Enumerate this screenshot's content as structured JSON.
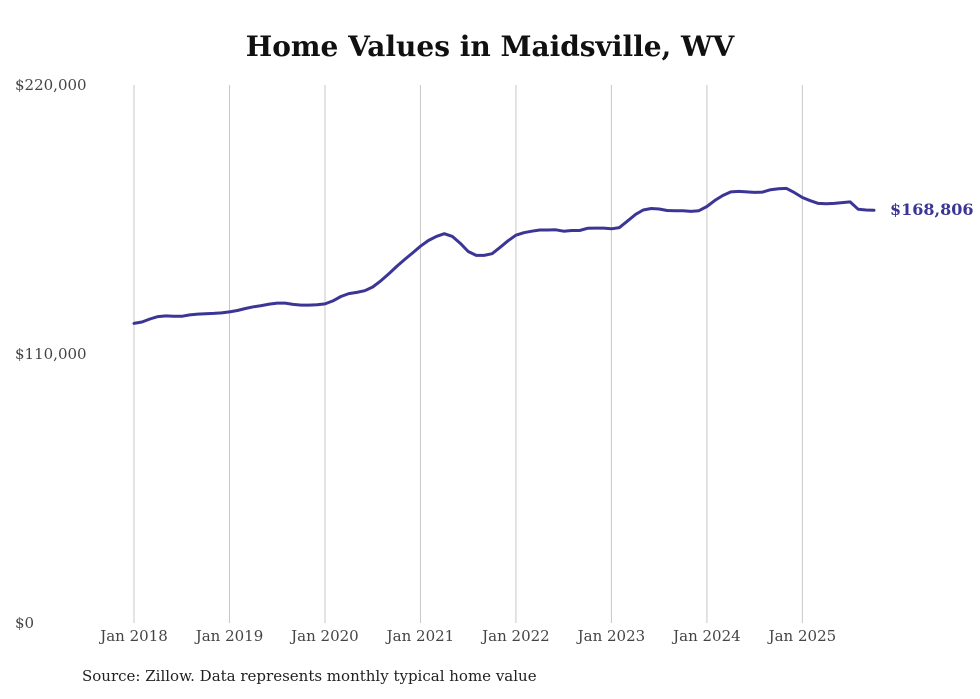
{
  "chart_data": {
    "type": "line",
    "title": "Home Values in Maidsville, WV",
    "xlabel": "",
    "ylabel": "",
    "ylim": [
      0,
      220000
    ],
    "y_ticks": [
      {
        "value": 0,
        "label": "$0"
      },
      {
        "value": 110000,
        "label": "$110,000"
      },
      {
        "value": 220000,
        "label": "$220,000"
      }
    ],
    "x_ticks": [
      {
        "value": 2018.0,
        "label": "Jan 2018"
      },
      {
        "value": 2019.0,
        "label": "Jan 2019"
      },
      {
        "value": 2020.0,
        "label": "Jan 2020"
      },
      {
        "value": 2021.0,
        "label": "Jan 2021"
      },
      {
        "value": 2022.0,
        "label": "Jan 2022"
      },
      {
        "value": 2023.0,
        "label": "Jan 2023"
      },
      {
        "value": 2024.0,
        "label": "Jan 2024"
      },
      {
        "value": 2025.0,
        "label": "Jan 2025"
      }
    ],
    "xlim": [
      2018.0,
      2025.75
    ],
    "grid": "vertical",
    "line_color": "#3b3596",
    "series": [
      {
        "x": [
          "2018-01",
          "2018-02",
          "2018-03",
          "2018-04",
          "2018-05",
          "2018-06",
          "2018-07",
          "2018-08",
          "2018-09",
          "2018-10",
          "2018-11",
          "2018-12",
          "2019-01",
          "2019-02",
          "2019-03",
          "2019-04",
          "2019-05",
          "2019-06",
          "2019-07",
          "2019-08",
          "2019-09",
          "2019-10",
          "2019-11",
          "2019-12",
          "2020-01",
          "2020-02",
          "2020-03",
          "2020-04",
          "2020-05",
          "2020-06",
          "2020-07",
          "2020-08",
          "2020-09",
          "2020-10",
          "2020-11",
          "2020-12",
          "2021-01",
          "2021-02",
          "2021-03",
          "2021-04",
          "2021-05",
          "2021-06",
          "2021-07",
          "2021-08",
          "2021-09",
          "2021-10",
          "2021-11",
          "2021-12",
          "2022-01",
          "2022-02",
          "2022-03",
          "2022-04",
          "2022-05",
          "2022-06",
          "2022-07",
          "2022-08",
          "2022-09",
          "2022-10",
          "2022-11",
          "2022-12",
          "2023-01",
          "2023-02",
          "2023-03",
          "2023-04",
          "2023-05",
          "2023-06",
          "2023-07",
          "2023-08",
          "2023-09",
          "2023-10",
          "2023-11",
          "2023-12",
          "2024-01",
          "2024-02",
          "2024-03",
          "2024-04",
          "2024-05",
          "2024-06",
          "2024-07",
          "2024-08",
          "2024-09",
          "2024-10",
          "2024-11",
          "2024-12",
          "2025-01",
          "2025-02",
          "2025-03",
          "2025-04",
          "2025-05",
          "2025-06",
          "2025-07",
          "2025-08",
          "2025-09",
          "2025-10"
        ],
        "values": [
          122500,
          123100,
          124300,
          125300,
          125600,
          125400,
          125400,
          126000,
          126300,
          126500,
          126600,
          126800,
          127200,
          127800,
          128600,
          129300,
          129800,
          130400,
          130800,
          130800,
          130300,
          130000,
          130000,
          130100,
          130500,
          131700,
          133500,
          134700,
          135200,
          135900,
          137400,
          139900,
          142700,
          145800,
          148600,
          151300,
          154100,
          156400,
          158100,
          159200,
          158100,
          155300,
          151900,
          150300,
          150300,
          151000,
          153600,
          156300,
          158600,
          159600,
          160200,
          160700,
          160700,
          160800,
          160200,
          160500,
          160500,
          161400,
          161500,
          161500,
          161200,
          161700,
          164300,
          167000,
          168900,
          169500,
          169300,
          168700,
          168600,
          168600,
          168300,
          168600,
          170300,
          172800,
          174800,
          176300,
          176500,
          176300,
          176100,
          176200,
          177200,
          177600,
          177700,
          176000,
          174000,
          172700,
          171600,
          171400,
          171600,
          171900,
          172200,
          169200,
          168900,
          168806
        ],
        "end_label": "$168,806"
      }
    ]
  },
  "source": "Source: Zillow. Data represents monthly typical home value"
}
